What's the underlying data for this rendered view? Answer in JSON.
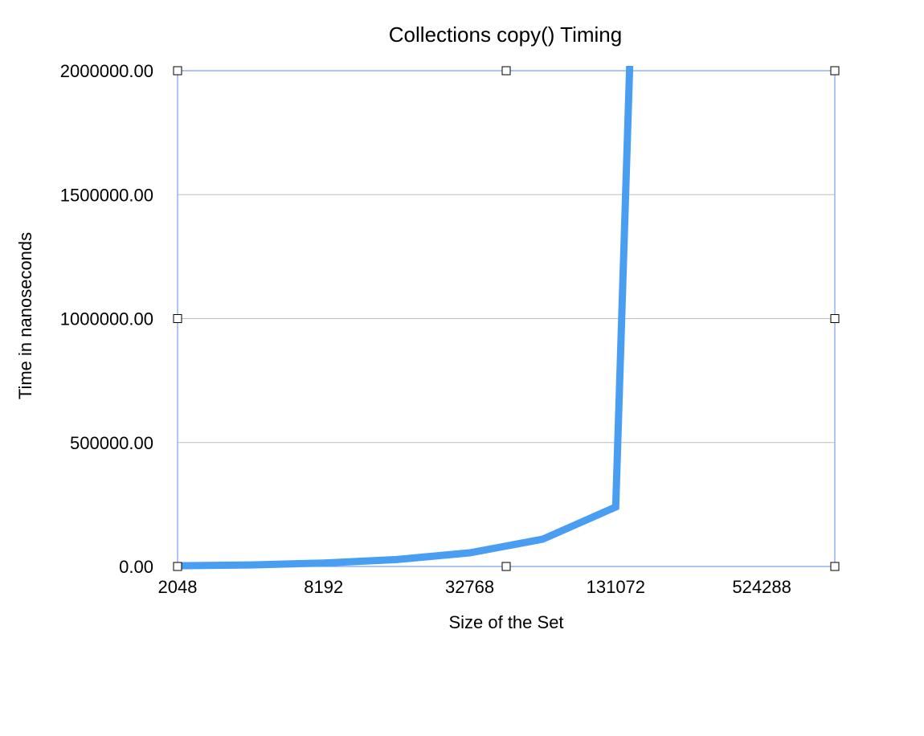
{
  "chart_data": {
    "type": "line",
    "title": "Collections copy() Timing",
    "xlabel": "Size of the Set",
    "ylabel": "Time in nanoseconds",
    "x_scale": "log2",
    "x_ticks": [
      "2048",
      "8192",
      "32768",
      "131072",
      "524288"
    ],
    "y_ticks": [
      "0.00",
      "500000.00",
      "1000000.00",
      "1500000.00",
      "2000000.00"
    ],
    "ylim": [
      0,
      2000000
    ],
    "xlim": [
      2048,
      1048576
    ],
    "grid": true,
    "line_color": "#4a9ef2",
    "series": [
      {
        "x": [
          2048,
          4096,
          8192,
          16384,
          32768,
          65536,
          131072,
          150000
        ],
        "values": [
          3000,
          6000,
          14000,
          28000,
          55000,
          110000,
          240000,
          2050000
        ]
      }
    ]
  }
}
